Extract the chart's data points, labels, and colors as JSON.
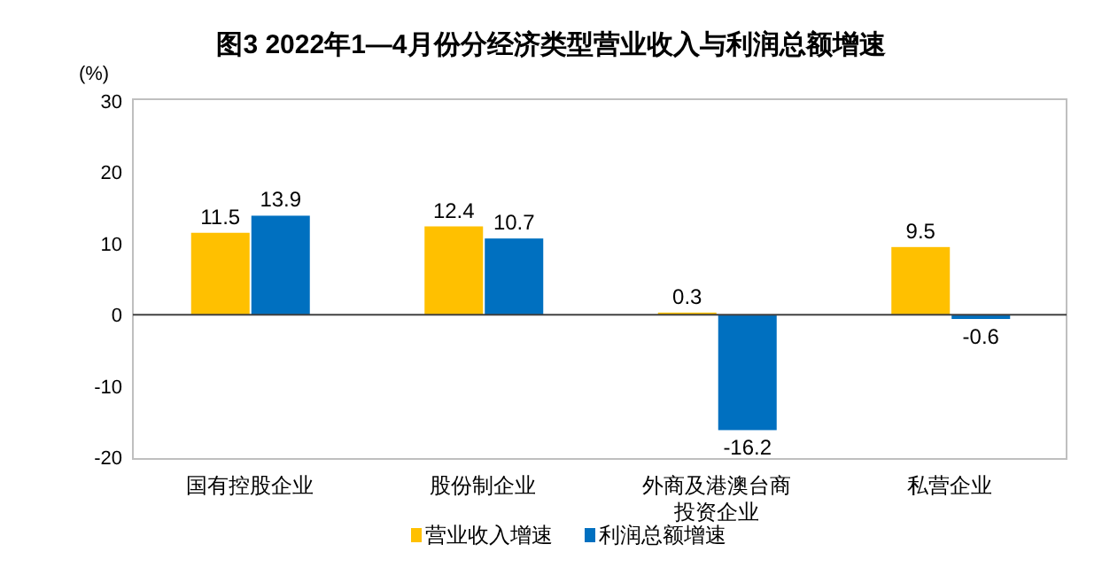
{
  "chart_data": {
    "type": "bar",
    "title": "图3  2022年1—4月份分经济类型营业收入与利润总额增速",
    "ylabel": "(%)",
    "categories": [
      "国有控股企业",
      "股份制企业",
      "外商及港澳台商投资企业",
      "私营企业"
    ],
    "series": [
      {
        "name": "营业收入增速",
        "color": "#ffc000",
        "values": [
          11.5,
          12.4,
          0.3,
          9.5
        ]
      },
      {
        "name": "利润总额增速",
        "color": "#0070c0",
        "values": [
          13.9,
          10.7,
          -16.2,
          -0.6
        ]
      }
    ],
    "ylim": [
      -20,
      30
    ],
    "yticks": [
      -20,
      -10,
      0,
      10,
      20,
      30
    ],
    "data_labels": true,
    "legend": "bottom"
  }
}
